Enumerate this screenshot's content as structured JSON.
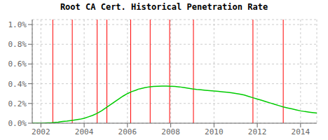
{
  "chart_data": {
    "type": "line",
    "title": "Root CA Cert. Historical Penetration Rate",
    "x": [
      2001.6,
      2002.0,
      2002.5,
      2002.8,
      2003.0,
      2003.2,
      2003.5,
      2003.8,
      2004.0,
      2004.2,
      2004.4,
      2004.6,
      2004.8,
      2005.0,
      2005.2,
      2005.4,
      2005.6,
      2005.8,
      2006.0,
      2006.2,
      2006.4,
      2006.5,
      2006.6,
      2006.8,
      2007.0,
      2007.2,
      2007.4,
      2007.6,
      2007.8,
      2008.0,
      2008.2,
      2008.4,
      2008.6,
      2008.8,
      2009.0,
      2009.2,
      2009.4,
      2009.6,
      2009.8,
      2010.0,
      2010.2,
      2010.4,
      2010.6,
      2010.8,
      2011.0,
      2011.2,
      2011.4,
      2011.6,
      2011.8,
      2012.0,
      2012.2,
      2012.4,
      2012.6,
      2012.8,
      2013.0,
      2013.2,
      2013.4,
      2013.6,
      2013.8,
      2014.0,
      2014.2,
      2014.4,
      2014.6,
      2014.75
    ],
    "values": [
      0.0,
      0.0,
      0.005,
      0.01,
      0.018,
      0.022,
      0.03,
      0.04,
      0.05,
      0.065,
      0.08,
      0.1,
      0.125,
      0.155,
      0.185,
      0.215,
      0.245,
      0.275,
      0.3,
      0.32,
      0.335,
      0.345,
      0.35,
      0.36,
      0.368,
      0.372,
      0.375,
      0.376,
      0.376,
      0.374,
      0.372,
      0.368,
      0.362,
      0.355,
      0.348,
      0.342,
      0.338,
      0.334,
      0.33,
      0.326,
      0.322,
      0.318,
      0.314,
      0.308,
      0.302,
      0.295,
      0.285,
      0.272,
      0.258,
      0.245,
      0.232,
      0.218,
      0.205,
      0.192,
      0.178,
      0.165,
      0.155,
      0.145,
      0.135,
      0.125,
      0.118,
      0.112,
      0.106,
      0.102
    ],
    "color": "#00cc00",
    "xlim": [
      2001.6,
      2014.75
    ],
    "ylim": [
      0.0,
      1.05
    ],
    "xticks": [
      2002,
      2004,
      2006,
      2008,
      2010,
      2012,
      2014
    ],
    "yticks": [
      {
        "value": 0.0,
        "label": "0.0%"
      },
      {
        "value": 0.2,
        "label": "0.2%"
      },
      {
        "value": 0.4,
        "label": "0.4%"
      },
      {
        "value": 0.6,
        "label": "0.6%"
      },
      {
        "value": 0.8,
        "label": "0.8%"
      },
      {
        "value": 1.0,
        "label": "1.0%"
      }
    ],
    "vlines": [
      2002.55,
      2003.45,
      2004.6,
      2005.05,
      2006.15,
      2007.05,
      2007.95,
      2009.05,
      2011.8,
      2013.2
    ],
    "vline_color": "#ff0000",
    "grid": true
  }
}
